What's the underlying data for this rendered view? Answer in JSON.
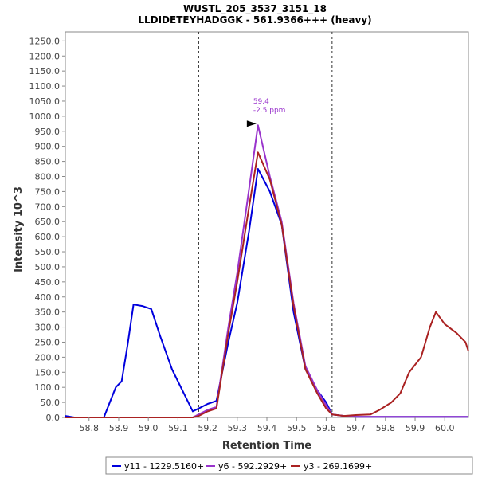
{
  "chart_data": {
    "type": "line",
    "title": "WUSTL_205_3537_3151_18",
    "subtitle": "LLDIDETEYHADGGK - 561.9366+++ (heavy)",
    "xlabel": "Retention Time",
    "ylabel": "Intensity 10^3",
    "xlim": [
      58.72,
      60.08
    ],
    "ylim": [
      0,
      1280
    ],
    "x_ticks": [
      58.8,
      58.9,
      59.0,
      59.1,
      59.2,
      59.3,
      59.4,
      59.5,
      59.6,
      59.7,
      59.8,
      59.9,
      60.0
    ],
    "x_tick_labels": [
      "58.8",
      "58.9",
      "59.0",
      "59.1",
      "59.2",
      "59.3",
      "59.4",
      "59.5",
      "59.6",
      "59.7",
      "59.8",
      "59.9",
      "60.0"
    ],
    "y_ticks": [
      0,
      50,
      100,
      150,
      200,
      250,
      300,
      350,
      400,
      450,
      500,
      550,
      600,
      650,
      700,
      750,
      800,
      850,
      900,
      950,
      1000,
      1050,
      1100,
      1150,
      1200,
      1250
    ],
    "y_tick_labels": [
      "0.0",
      "50.0",
      "100.0",
      "150.0",
      "200.0",
      "250.0",
      "300.0",
      "350.0",
      "400.0",
      "450.0",
      "500.0",
      "550.0",
      "600.0",
      "650.0",
      "700.0",
      "750.0",
      "800.0",
      "850.0",
      "900.0",
      "950.0",
      "1000.0",
      "1050.0",
      "1100.0",
      "1150.0",
      "1200.0",
      "1250.0"
    ],
    "boundary_lines": [
      59.17,
      59.62
    ],
    "annotation": {
      "x": 59.37,
      "y": 970,
      "rt_label": "59.4",
      "ppm_label": "-2.5 ppm",
      "color": "#9933cc"
    },
    "grid": false,
    "legend_position": "bottom",
    "series": [
      {
        "name": "y11 - 1229.5160+",
        "color": "#0000dd",
        "x": [
          58.72,
          58.75,
          58.8,
          58.85,
          58.87,
          58.89,
          58.91,
          58.93,
          58.95,
          58.98,
          59.01,
          59.04,
          59.08,
          59.12,
          59.15,
          59.17,
          59.2,
          59.23,
          59.27,
          59.3,
          59.34,
          59.37,
          59.41,
          59.45,
          59.49,
          59.53,
          59.57,
          59.6,
          59.62,
          59.66,
          59.7,
          59.8,
          59.9,
          60.0,
          60.08
        ],
        "y": [
          5,
          0,
          0,
          0,
          50,
          100,
          120,
          240,
          375,
          370,
          360,
          270,
          160,
          80,
          20,
          30,
          45,
          55,
          250,
          380,
          620,
          825,
          750,
          640,
          350,
          160,
          90,
          50,
          10,
          5,
          2,
          2,
          2,
          2,
          2
        ]
      },
      {
        "name": "y6 - 592.2929+",
        "color": "#9933cc",
        "x": [
          58.72,
          58.8,
          58.9,
          59.0,
          59.1,
          59.15,
          59.17,
          59.2,
          59.23,
          59.27,
          59.3,
          59.34,
          59.37,
          59.41,
          59.45,
          59.49,
          59.53,
          59.57,
          59.6,
          59.62,
          59.66,
          59.7,
          59.8,
          59.9,
          60.0,
          60.08
        ],
        "y": [
          0,
          0,
          0,
          0,
          0,
          0,
          10,
          25,
          35,
          300,
          480,
          760,
          970,
          800,
          650,
          380,
          170,
          90,
          40,
          10,
          5,
          2,
          2,
          2,
          2,
          2
        ]
      },
      {
        "name": "y3 - 269.1699+",
        "color": "#aa2222",
        "x": [
          58.72,
          58.8,
          58.9,
          59.0,
          59.1,
          59.15,
          59.17,
          59.2,
          59.23,
          59.27,
          59.3,
          59.34,
          59.37,
          59.41,
          59.45,
          59.49,
          59.53,
          59.57,
          59.6,
          59.62,
          59.66,
          59.7,
          59.75,
          59.78,
          59.82,
          59.85,
          59.88,
          59.92,
          59.95,
          59.97,
          60.0,
          60.04,
          60.07,
          60.08
        ],
        "y": [
          0,
          0,
          0,
          0,
          0,
          0,
          5,
          20,
          30,
          280,
          450,
          700,
          880,
          790,
          640,
          370,
          160,
          80,
          30,
          10,
          5,
          8,
          10,
          25,
          50,
          80,
          150,
          200,
          300,
          350,
          310,
          280,
          250,
          220
        ]
      }
    ]
  }
}
